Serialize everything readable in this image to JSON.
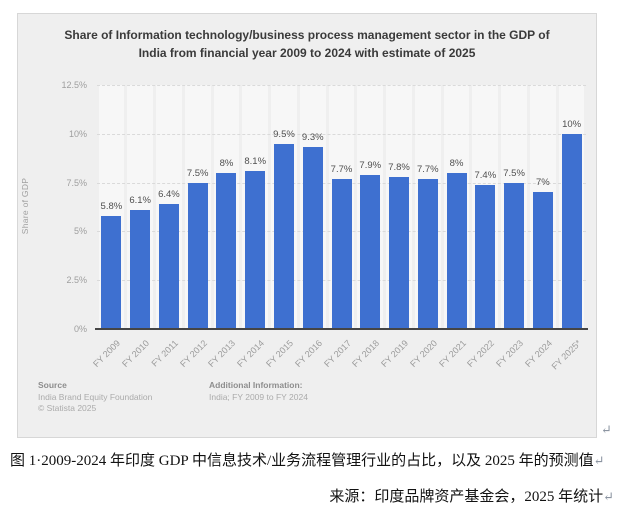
{
  "page": {
    "caption_line1": "图 1·2009-2024 年印度 GDP 中信息技术/业务流程管理行业的占比，以及 2025 年的预测值",
    "caption_line2": "来源：印度品牌资产基金会，2025 年统计",
    "return_mark": "↵"
  },
  "chart": {
    "title_line1": "Share of Information technology/business process management sector in the GDP of",
    "title_line2": "India from financial year 2009 to 2024 with estimate of 2025",
    "footer": {
      "source_label": "Source",
      "source_name": "India Brand Equity Foundation",
      "copyright": "© Statista 2025",
      "additional_label": "Additional Information:",
      "additional_value": "India; FY 2009 to FY 2024"
    },
    "colors": {
      "bar": "#3e70d0",
      "card_background": "#efefef",
      "axis": "#454545"
    }
  },
  "chart_data": {
    "type": "bar",
    "title": "Share of Information technology/business process management sector in the GDP of India from financial year 2009 to 2024 with estimate of 2025",
    "xlabel": "",
    "ylabel": "Share of GDP",
    "categories": [
      "FY 2009",
      "FY 2010",
      "FY 2011",
      "FY 2012",
      "FY 2013",
      "FY 2014",
      "FY 2015",
      "FY 2016",
      "FY 2017",
      "FY 2018",
      "FY 2019",
      "FY 2020",
      "FY 2021",
      "FY 2022",
      "FY 2023",
      "FY 2024",
      "FY 2025*"
    ],
    "values": [
      5.8,
      6.1,
      6.4,
      7.5,
      8,
      8.1,
      9.5,
      9.3,
      7.7,
      7.9,
      7.8,
      7.7,
      8,
      7.4,
      7.5,
      7,
      10
    ],
    "value_labels": [
      "5.8%",
      "6.1%",
      "6.4%",
      "7.5%",
      "8%",
      "8.1%",
      "9.5%",
      "9.3%",
      "7.7%",
      "7.9%",
      "7.8%",
      "7.7%",
      "8%",
      "7.4%",
      "7.5%",
      "7%",
      "10%"
    ],
    "ylim": [
      0,
      12.5
    ],
    "yticks": [
      0,
      2.5,
      5,
      7.5,
      10,
      12.5
    ],
    "ytick_labels": [
      "0%",
      "2.5%",
      "5%",
      "7.5%",
      "10%",
      "12.5%"
    ],
    "grid": true,
    "legend": false
  }
}
